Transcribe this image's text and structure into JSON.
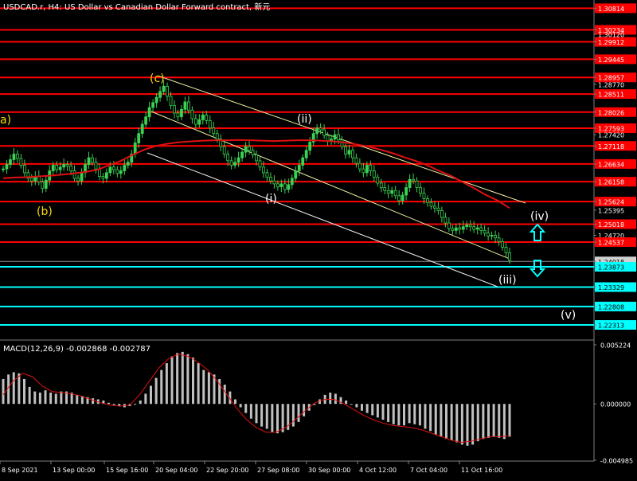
{
  "window": {
    "title": "USDCAD.r, H4: US Dollar vs Canadian Dollar Forward contract, 新元"
  },
  "colors": {
    "background": "#000000",
    "candle": "#39d353",
    "price_line": "#c8c8c8",
    "resistance": "#ff0000",
    "support": "#00ffff",
    "moving_average": "#e01010",
    "channel": "#f0f0a0",
    "channel_outer": "#f0f0f0",
    "wave_label_yellow": "#ffd800",
    "wave_label_white": "#ffffff",
    "macd_hist": "#c0c0c0",
    "macd_signal": "#e01010",
    "arrow_up": "#00ffff",
    "arrow_down": "#00ffff"
  },
  "chart_data": [
    {
      "type": "line",
      "subtype": "candlestick",
      "ylim": [
        1.2195,
        1.3095
      ],
      "x_ticks": [
        "8 Sep 2021",
        "13 Sep 00:00",
        "15 Sep 16:00",
        "20 Sep 04:00",
        "22 Sep 20:00",
        "27 Sep 08:00",
        "30 Sep 00:00",
        "4 Oct 12:00",
        "7 Oct 04:00",
        "11 Oct 16:00"
      ],
      "y_ticks": [
        {
          "value": 1.30814,
          "label": "1.30814",
          "style": "red"
        },
        {
          "value": 1.30234,
          "label": "1.30234",
          "style": "red"
        },
        {
          "value": 1.3012,
          "label": "1.30120",
          "style": "plain"
        },
        {
          "value": 1.29912,
          "label": "1.29912",
          "style": "red"
        },
        {
          "value": 1.29445,
          "label": "1.29445",
          "style": "red"
        },
        {
          "value": 1.28957,
          "label": "1.28957",
          "style": "red"
        },
        {
          "value": 1.2877,
          "label": "1.28770",
          "style": "plain"
        },
        {
          "value": 1.28511,
          "label": "1.28511",
          "style": "red"
        },
        {
          "value": 1.28026,
          "label": "1.28026",
          "style": "red"
        },
        {
          "value": 1.27593,
          "label": "1.27593",
          "style": "red"
        },
        {
          "value": 1.2742,
          "label": "1.27420",
          "style": "plain"
        },
        {
          "value": 1.27118,
          "label": "1.27118",
          "style": "red"
        },
        {
          "value": 1.26634,
          "label": "1.26634",
          "style": "red"
        },
        {
          "value": 1.26158,
          "label": "1.26158",
          "style": "red"
        },
        {
          "value": 1.25624,
          "label": "1.25624",
          "style": "red"
        },
        {
          "value": 1.25395,
          "label": "1.25395",
          "style": "plain"
        },
        {
          "value": 1.25018,
          "label": "1.25018",
          "style": "red"
        },
        {
          "value": 1.2472,
          "label": "1.24720",
          "style": "plain"
        },
        {
          "value": 1.24537,
          "label": "1.24537",
          "style": "red"
        },
        {
          "value": 1.24018,
          "label": "1.24018",
          "style": "current"
        },
        {
          "value": 1.23873,
          "label": "1.23873",
          "style": "cyan"
        },
        {
          "value": 1.23329,
          "label": "1.23329",
          "style": "cyan"
        },
        {
          "value": 1.22808,
          "label": "1.22808",
          "style": "cyan"
        },
        {
          "value": 1.22313,
          "label": "1.22313",
          "style": "cyan"
        }
      ],
      "resistance_levels": [
        1.30814,
        1.30234,
        1.29912,
        1.29445,
        1.28957,
        1.28511,
        1.28026,
        1.27593,
        1.27118,
        1.26634,
        1.26158,
        1.25624,
        1.25018,
        1.24537
      ],
      "support_levels": [
        1.23873,
        1.23329,
        1.22808,
        1.22313
      ],
      "current_price": 1.24018,
      "close_series": [
        1.265,
        1.2662,
        1.2675,
        1.269,
        1.2678,
        1.266,
        1.264,
        1.2625,
        1.2618,
        1.263,
        1.2615,
        1.2598,
        1.262,
        1.2645,
        1.266,
        1.2648,
        1.2655,
        1.2662,
        1.2658,
        1.2645,
        1.2625,
        1.2618,
        1.264,
        1.2662,
        1.268,
        1.2668,
        1.265,
        1.263,
        1.2625,
        1.264,
        1.2655,
        1.2648,
        1.2638,
        1.2645,
        1.266,
        1.2668,
        1.269,
        1.272,
        1.2745,
        1.277,
        1.279,
        1.2815,
        1.2828,
        1.2842,
        1.2858,
        1.2872,
        1.2845,
        1.282,
        1.28,
        1.279,
        1.281,
        1.283,
        1.2808,
        1.2785,
        1.277,
        1.2782,
        1.2795,
        1.278,
        1.276,
        1.2745,
        1.273,
        1.271,
        1.269,
        1.2672,
        1.266,
        1.2668,
        1.268,
        1.2695,
        1.271,
        1.27,
        1.2688,
        1.2672,
        1.2655,
        1.264,
        1.2628,
        1.2618,
        1.261,
        1.2602,
        1.261,
        1.2595,
        1.2608,
        1.2625,
        1.2645,
        1.266,
        1.268,
        1.27,
        1.2722,
        1.2745,
        1.276,
        1.2755,
        1.274,
        1.2725,
        1.273,
        1.2742,
        1.2728,
        1.271,
        1.269,
        1.27,
        1.268,
        1.2665,
        1.265,
        1.264,
        1.266,
        1.2645,
        1.2628,
        1.2612,
        1.26,
        1.2592,
        1.2585,
        1.2592,
        1.2578,
        1.2565,
        1.258,
        1.26,
        1.2622,
        1.2618,
        1.26,
        1.2585,
        1.257,
        1.256,
        1.255,
        1.2545,
        1.2538,
        1.252,
        1.2505,
        1.249,
        1.2485,
        1.2492,
        1.2488,
        1.2495,
        1.25,
        1.2495,
        1.2488,
        1.2492,
        1.2485,
        1.2478,
        1.247,
        1.2472,
        1.2465,
        1.2455,
        1.244,
        1.2425,
        1.2405
      ],
      "moving_average": [
        1.2625,
        1.2627,
        1.2628,
        1.263,
        1.2632,
        1.2635,
        1.2638,
        1.2642,
        1.2648,
        1.266,
        1.2672,
        1.2688,
        1.2702,
        1.2712,
        1.2718,
        1.2722,
        1.2724,
        1.2726,
        1.2727,
        1.2727,
        1.2728,
        1.2727,
        1.2726,
        1.2725,
        1.2726,
        1.2727,
        1.2727,
        1.2726,
        1.2724,
        1.2721,
        1.2716,
        1.271,
        1.2702,
        1.2693,
        1.2682,
        1.2672,
        1.266,
        1.2645,
        1.2632,
        1.2615,
        1.2598,
        1.258,
        1.2565,
        1.2545
      ],
      "channel": {
        "upper": {
          "start_label": "(c)",
          "end_label": "(iv)"
        },
        "lower": {
          "start_label": "(c)",
          "end_label": "(iii)"
        }
      },
      "wave_labels": [
        {
          "text": "a)",
          "color": "yellow"
        },
        {
          "text": "(b)",
          "color": "yellow"
        },
        {
          "text": "(c)",
          "color": "yellow"
        },
        {
          "text": "(i)",
          "color": "white"
        },
        {
          "text": "(ii)",
          "color": "white"
        },
        {
          "text": "(iii)",
          "color": "white"
        },
        {
          "text": "(iv)",
          "color": "white"
        },
        {
          "text": "(v)",
          "color": "white"
        }
      ],
      "arrows": [
        {
          "direction": "up",
          "label": "up-arrow"
        },
        {
          "direction": "down",
          "label": "down-arrow"
        }
      ]
    },
    {
      "type": "bar",
      "title": "MACD(12,26,9) -0.002868 -0.002787",
      "ylim": [
        -0.004985,
        0.005224
      ],
      "y_ticks": [
        {
          "value": 0.005224,
          "label": "0.005224"
        },
        {
          "value": 0.0,
          "label": "0.000000"
        },
        {
          "value": -0.004985,
          "label": "-0.004985"
        }
      ],
      "histogram": [
        0.0022,
        0.0026,
        0.0028,
        0.0027,
        0.0022,
        0.0015,
        0.0011,
        0.001,
        0.0012,
        0.001,
        0.0009,
        0.0011,
        0.0011,
        0.001,
        0.0008,
        0.0007,
        0.0006,
        0.0005,
        0.0004,
        0.0003,
        0.0001,
        -0.0001,
        -0.0002,
        -0.0003,
        -0.0002,
        0.0,
        0.0003,
        0.0009,
        0.0016,
        0.0023,
        0.003,
        0.0036,
        0.0042,
        0.0045,
        0.0046,
        0.0044,
        0.0041,
        0.0036,
        0.003,
        0.0028,
        0.0026,
        0.0022,
        0.0017,
        0.0011,
        0.0004,
        -0.0003,
        -0.0008,
        -0.0013,
        -0.0017,
        -0.002,
        -0.0022,
        -0.0025,
        -0.0026,
        -0.0025,
        -0.0023,
        -0.002,
        -0.0016,
        -0.0011,
        -0.0006,
        -0.0001,
        0.0004,
        0.0008,
        0.001,
        0.0009,
        0.0006,
        0.0003,
        0.0,
        -0.0003,
        -0.0006,
        -0.0008,
        -0.001,
        -0.0012,
        -0.0014,
        -0.0016,
        -0.0018,
        -0.0019,
        -0.0019,
        -0.0017,
        -0.0018,
        -0.0019,
        -0.0022,
        -0.0024,
        -0.0027,
        -0.0029,
        -0.0031,
        -0.0032,
        -0.0034,
        -0.0036,
        -0.0037,
        -0.0036,
        -0.0033,
        -0.0031,
        -0.003,
        -0.0029,
        -0.003,
        -0.0031,
        -0.0029
      ],
      "signal": [
        0.0008,
        0.002,
        0.0027,
        0.0024,
        0.0016,
        0.0011,
        0.001,
        0.0009,
        0.0007,
        0.0004,
        0.0001,
        -0.0001,
        -0.0002,
        -0.0001,
        0.0008,
        0.002,
        0.0032,
        0.004,
        0.0044,
        0.0042,
        0.0037,
        0.003,
        0.002,
        0.0008,
        -0.0004,
        -0.0014,
        -0.0021,
        -0.0025,
        -0.0025,
        -0.0021,
        -0.0014,
        -0.0006,
        0.0001,
        0.0004,
        0.0004,
        0.0,
        -0.0005,
        -0.001,
        -0.0014,
        -0.0017,
        -0.0019,
        -0.002,
        -0.0021,
        -0.0023,
        -0.0026,
        -0.0029,
        -0.0032,
        -0.0034,
        -0.0033,
        -0.0031,
        -0.0029,
        -0.0029,
        -0.0028
      ]
    }
  ]
}
